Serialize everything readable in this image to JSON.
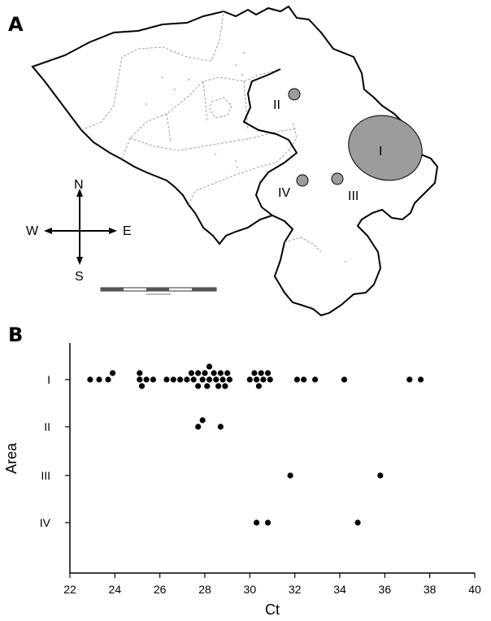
{
  "panel_a": {
    "letter": "A",
    "area_labels": {
      "one": "I",
      "two": "II",
      "three": "III",
      "four": "IV"
    },
    "compass": {
      "north": "N",
      "south": "S",
      "east": "E",
      "west": "W"
    },
    "colors": {
      "area_fill": "#9c9c9c",
      "outline": "#000000",
      "internal_border": "#a0a0a0"
    }
  },
  "chart_data": {
    "type": "scatter",
    "panel_letter": "B",
    "xlabel": "Ct",
    "ylabel": "Area",
    "xlim": [
      22,
      40
    ],
    "x_ticks": [
      22,
      24,
      26,
      28,
      30,
      32,
      34,
      36,
      38,
      40
    ],
    "y_categories": [
      "I",
      "II",
      "III",
      "IV"
    ],
    "grid": false,
    "marker_color": "#000000",
    "points": {
      "I": [
        22.9,
        23.3,
        23.7,
        23.9,
        25.1,
        25.1,
        25.2,
        25.4,
        25.7,
        26.3,
        26.6,
        26.9,
        27.2,
        27.4,
        27.5,
        27.7,
        27.7,
        27.9,
        28.0,
        28.1,
        28.2,
        28.2,
        28.4,
        28.5,
        28.6,
        28.7,
        28.8,
        28.9,
        29.0,
        29.1,
        30.0,
        30.2,
        30.3,
        30.4,
        30.5,
        30.6,
        30.8,
        30.9,
        32.1,
        32.4,
        32.9,
        34.2,
        37.1,
        37.6
      ],
      "II": [
        27.7,
        27.9,
        28.7
      ],
      "III": [
        31.8,
        35.8
      ],
      "IV": [
        30.3,
        30.8,
        34.8
      ]
    }
  }
}
